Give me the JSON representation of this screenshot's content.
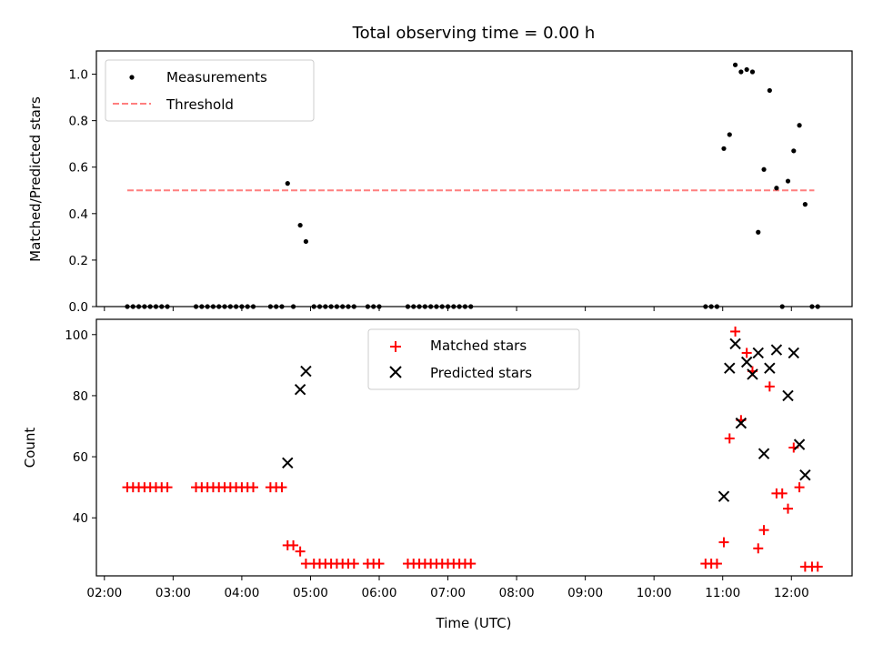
{
  "chart_data": [
    {
      "type": "scatter",
      "title": "Total observing time = 0.00 h",
      "xlabel": "",
      "ylabel": "Matched/Predicted stars",
      "ylim": [
        0,
        1.1
      ],
      "xlim": [
        "01:53",
        "12:53"
      ],
      "yticks": [
        "0.0",
        "0.2",
        "0.4",
        "0.6",
        "0.8",
        "1.0"
      ],
      "legend_position": "top-left",
      "grid": false,
      "series": [
        {
          "name": "Measurements",
          "color": "#000000",
          "marker": "dot",
          "points": [
            [
              "02:20",
              0
            ],
            [
              "02:25",
              0
            ],
            [
              "02:30",
              0
            ],
            [
              "02:35",
              0
            ],
            [
              "02:40",
              0
            ],
            [
              "02:45",
              0
            ],
            [
              "02:50",
              0
            ],
            [
              "02:55",
              0
            ],
            [
              "03:20",
              0
            ],
            [
              "03:25",
              0
            ],
            [
              "03:30",
              0
            ],
            [
              "03:35",
              0
            ],
            [
              "03:40",
              0
            ],
            [
              "03:45",
              0
            ],
            [
              "03:50",
              0
            ],
            [
              "03:55",
              0
            ],
            [
              "04:00",
              0
            ],
            [
              "04:05",
              0
            ],
            [
              "04:10",
              0
            ],
            [
              "04:25",
              0
            ],
            [
              "04:30",
              0
            ],
            [
              "04:35",
              0
            ],
            [
              "04:40",
              0.53
            ],
            [
              "04:45",
              0
            ],
            [
              "04:51",
              0.35
            ],
            [
              "04:56",
              0.28
            ],
            [
              "05:03",
              0
            ],
            [
              "05:08",
              0
            ],
            [
              "05:13",
              0
            ],
            [
              "05:18",
              0
            ],
            [
              "05:23",
              0
            ],
            [
              "05:28",
              0
            ],
            [
              "05:33",
              0
            ],
            [
              "05:38",
              0
            ],
            [
              "05:50",
              0
            ],
            [
              "05:55",
              0
            ],
            [
              "06:00",
              0
            ],
            [
              "06:25",
              0
            ],
            [
              "06:30",
              0
            ],
            [
              "06:35",
              0
            ],
            [
              "06:40",
              0
            ],
            [
              "06:45",
              0
            ],
            [
              "06:50",
              0
            ],
            [
              "06:55",
              0
            ],
            [
              "07:00",
              0
            ],
            [
              "07:05",
              0
            ],
            [
              "07:10",
              0
            ],
            [
              "07:15",
              0
            ],
            [
              "07:20",
              0
            ],
            [
              "10:45",
              0
            ],
            [
              "10:50",
              0
            ],
            [
              "10:55",
              0
            ],
            [
              "11:01",
              0.68
            ],
            [
              "11:06",
              0.74
            ],
            [
              "11:11",
              1.04
            ],
            [
              "11:16",
              1.01
            ],
            [
              "11:21",
              1.02
            ],
            [
              "11:26",
              1.01
            ],
            [
              "11:31",
              0.32
            ],
            [
              "11:36",
              0.59
            ],
            [
              "11:41",
              0.93
            ],
            [
              "11:47",
              0.51
            ],
            [
              "11:52",
              0
            ],
            [
              "11:57",
              0.54
            ],
            [
              "12:02",
              0.67
            ],
            [
              "12:07",
              0.78
            ],
            [
              "12:12",
              0.44
            ],
            [
              "12:18",
              0
            ],
            [
              "12:23",
              0
            ]
          ]
        },
        {
          "name": "Threshold",
          "color": "#ff7f7f",
          "style": "dashed",
          "points": [
            [
              "02:20",
              0.5
            ],
            [
              "12:20",
              0.5
            ]
          ]
        }
      ]
    },
    {
      "type": "scatter",
      "title": "",
      "xlabel": "Time (UTC)",
      "ylabel": "Count",
      "ylim": [
        21,
        105
      ],
      "xlim": [
        "01:53",
        "12:53"
      ],
      "xticks": [
        "02:00",
        "03:00",
        "04:00",
        "05:00",
        "06:00",
        "07:00",
        "08:00",
        "09:00",
        "10:00",
        "11:00",
        "12:00"
      ],
      "yticks": [
        "40",
        "60",
        "80",
        "100"
      ],
      "legend_position": "upper-center",
      "grid": false,
      "series": [
        {
          "name": "Matched stars",
          "color": "#ff0000",
          "marker": "plus",
          "points": [
            [
              "02:20",
              50
            ],
            [
              "02:25",
              50
            ],
            [
              "02:30",
              50
            ],
            [
              "02:35",
              50
            ],
            [
              "02:40",
              50
            ],
            [
              "02:45",
              50
            ],
            [
              "02:50",
              50
            ],
            [
              "02:55",
              50
            ],
            [
              "03:20",
              50
            ],
            [
              "03:25",
              50
            ],
            [
              "03:30",
              50
            ],
            [
              "03:35",
              50
            ],
            [
              "03:40",
              50
            ],
            [
              "03:45",
              50
            ],
            [
              "03:50",
              50
            ],
            [
              "03:55",
              50
            ],
            [
              "04:00",
              50
            ],
            [
              "04:05",
              50
            ],
            [
              "04:10",
              50
            ],
            [
              "04:25",
              50
            ],
            [
              "04:30",
              50
            ],
            [
              "04:35",
              50
            ],
            [
              "04:40",
              31
            ],
            [
              "04:45",
              31
            ],
            [
              "04:51",
              29
            ],
            [
              "04:56",
              25
            ],
            [
              "05:03",
              25
            ],
            [
              "05:08",
              25
            ],
            [
              "05:13",
              25
            ],
            [
              "05:18",
              25
            ],
            [
              "05:23",
              25
            ],
            [
              "05:28",
              25
            ],
            [
              "05:33",
              25
            ],
            [
              "05:38",
              25
            ],
            [
              "05:50",
              25
            ],
            [
              "05:55",
              25
            ],
            [
              "06:00",
              25
            ],
            [
              "06:25",
              25
            ],
            [
              "06:30",
              25
            ],
            [
              "06:35",
              25
            ],
            [
              "06:40",
              25
            ],
            [
              "06:45",
              25
            ],
            [
              "06:50",
              25
            ],
            [
              "06:55",
              25
            ],
            [
              "07:00",
              25
            ],
            [
              "07:05",
              25
            ],
            [
              "07:10",
              25
            ],
            [
              "07:15",
              25
            ],
            [
              "07:20",
              25
            ],
            [
              "10:45",
              25
            ],
            [
              "10:50",
              25
            ],
            [
              "10:55",
              25
            ],
            [
              "11:01",
              32
            ],
            [
              "11:06",
              66
            ],
            [
              "11:11",
              101
            ],
            [
              "11:16",
              72
            ],
            [
              "11:21",
              94
            ],
            [
              "11:26",
              88
            ],
            [
              "11:31",
              30
            ],
            [
              "11:36",
              36
            ],
            [
              "11:41",
              83
            ],
            [
              "11:47",
              48
            ],
            [
              "11:52",
              48
            ],
            [
              "11:57",
              43
            ],
            [
              "12:02",
              63
            ],
            [
              "12:07",
              50
            ],
            [
              "12:12",
              24
            ],
            [
              "12:18",
              24
            ],
            [
              "12:23",
              24
            ]
          ]
        },
        {
          "name": "Predicted stars",
          "color": "#000000",
          "marker": "x",
          "points": [
            [
              "04:40",
              58
            ],
            [
              "04:51",
              82
            ],
            [
              "04:56",
              88
            ],
            [
              "11:01",
              47
            ],
            [
              "11:06",
              89
            ],
            [
              "11:11",
              97
            ],
            [
              "11:16",
              71
            ],
            [
              "11:21",
              91
            ],
            [
              "11:26",
              87
            ],
            [
              "11:31",
              94
            ],
            [
              "11:36",
              61
            ],
            [
              "11:41",
              89
            ],
            [
              "11:47",
              95
            ],
            [
              "11:57",
              80
            ],
            [
              "12:02",
              94
            ],
            [
              "12:07",
              64
            ],
            [
              "12:12",
              54
            ]
          ]
        }
      ]
    }
  ]
}
